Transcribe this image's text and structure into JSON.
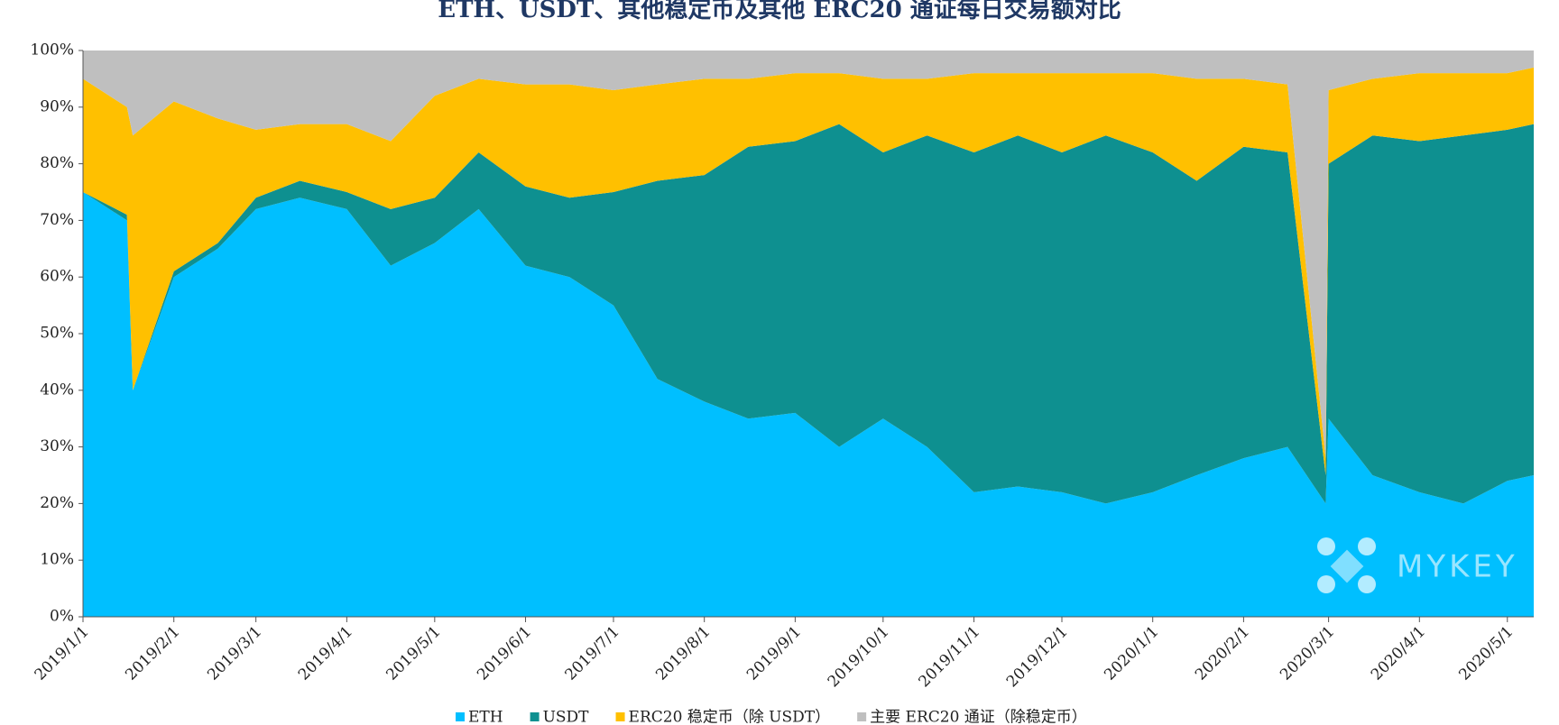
{
  "chart_data": {
    "type": "stacked_area",
    "title": "ETH、USDT、其他稳定币及其他 ERC20 通证每日交易额对比",
    "watermark": "MYKEY",
    "x": [
      "2019/1/1",
      "2019/1/16",
      "2019/1/18",
      "2019/2/1",
      "2019/2/16",
      "2019/3/1",
      "2019/3/16",
      "2019/4/1",
      "2019/4/16",
      "2019/5/1",
      "2019/5/16",
      "2019/6/1",
      "2019/6/16",
      "2019/7/1",
      "2019/7/16",
      "2019/8/1",
      "2019/8/16",
      "2019/9/1",
      "2019/9/16",
      "2019/10/1",
      "2019/10/16",
      "2019/11/1",
      "2019/11/16",
      "2019/12/1",
      "2019/12/16",
      "2020/1/1",
      "2020/1/16",
      "2020/2/1",
      "2020/2/16",
      "2020/2/29",
      "2020/3/1",
      "2020/3/16",
      "2020/4/1",
      "2020/4/16",
      "2020/5/1",
      "2020/5/10"
    ],
    "series": [
      {
        "name": "ETH",
        "color": "#00bfff",
        "values": [
          75,
          70,
          40,
          60,
          65,
          72,
          74,
          72,
          62,
          66,
          72,
          62,
          60,
          55,
          42,
          38,
          35,
          36,
          30,
          35,
          30,
          22,
          23,
          22,
          20,
          22,
          25,
          28,
          30,
          20,
          35,
          25,
          22,
          20,
          24,
          25
        ]
      },
      {
        "name": "USDT",
        "color": "#0e9090",
        "values": [
          0,
          1,
          0,
          1,
          1,
          2,
          3,
          3,
          10,
          8,
          10,
          14,
          14,
          20,
          35,
          40,
          48,
          48,
          57,
          47,
          55,
          60,
          62,
          60,
          65,
          60,
          52,
          55,
          52,
          5,
          45,
          60,
          62,
          65,
          62,
          62
        ]
      },
      {
        "name": "ERC20 稳定币（除 USDT）",
        "color": "#ffc000",
        "values": [
          20,
          19,
          45,
          30,
          22,
          12,
          10,
          12,
          12,
          18,
          13,
          18,
          20,
          18,
          17,
          17,
          12,
          12,
          9,
          13,
          10,
          14,
          11,
          14,
          11,
          14,
          18,
          12,
          12,
          3,
          13,
          10,
          12,
          11,
          10,
          10
        ]
      },
      {
        "name": "主要 ERC20 通证（除稳定币）",
        "color": "#bfbfbf",
        "values": [
          5,
          10,
          15,
          9,
          12,
          14,
          13,
          13,
          16,
          8,
          5,
          6,
          6,
          7,
          6,
          5,
          5,
          4,
          4,
          5,
          5,
          4,
          4,
          4,
          4,
          4,
          5,
          5,
          6,
          72,
          7,
          5,
          4,
          4,
          4,
          3
        ]
      }
    ],
    "xlim": [
      "2019/1/1",
      "2020/5/10"
    ],
    "xticks": [
      "2019/1/1",
      "2019/2/1",
      "2019/3/1",
      "2019/4/1",
      "2019/5/1",
      "2019/6/1",
      "2019/7/1",
      "2019/8/1",
      "2019/9/1",
      "2019/10/1",
      "2019/11/1",
      "2019/12/1",
      "2020/1/1",
      "2020/2/1",
      "2020/3/1",
      "2020/4/1",
      "2020/5/1"
    ],
    "ylim": [
      0,
      100
    ],
    "yticks": [
      {
        "value": 0,
        "label": "0%"
      },
      {
        "value": 10,
        "label": "10%"
      },
      {
        "value": 20,
        "label": "20%"
      },
      {
        "value": 30,
        "label": "30%"
      },
      {
        "value": 40,
        "label": "40%"
      },
      {
        "value": 50,
        "label": "50%"
      },
      {
        "value": 60,
        "label": "60%"
      },
      {
        "value": 70,
        "label": "70%"
      },
      {
        "value": 80,
        "label": "80%"
      },
      {
        "value": 90,
        "label": "90%"
      },
      {
        "value": 100,
        "label": "100%"
      }
    ]
  }
}
